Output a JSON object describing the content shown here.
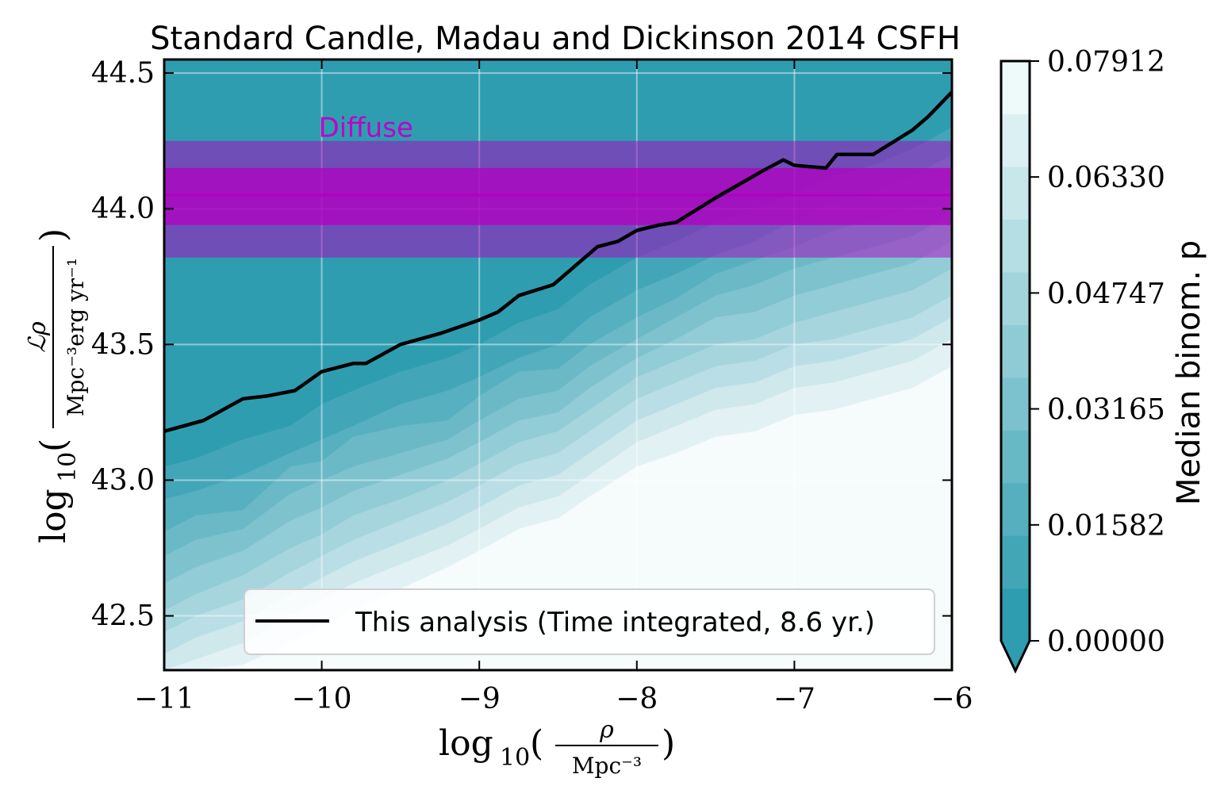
{
  "chart_data": {
    "type": "contour",
    "title": "Standard Candle, Madau and Dickinson 2014 CSFH",
    "xlabel": "log10 (ρ / Mpc⁻³)",
    "ylabel": "log10 (ℒρ / Mpc⁻³ erg yr⁻¹)",
    "xlim": [
      -11,
      -6
    ],
    "ylim": [
      42.3,
      44.55
    ],
    "xticks": [
      "−11",
      "−10",
      "−9",
      "−8",
      "−7",
      "−6"
    ],
    "xtick_values": [
      -11,
      -10,
      -9,
      -8,
      -7,
      -6
    ],
    "yticks": [
      "42.5",
      "43.0",
      "43.5",
      "44.0",
      "44.5"
    ],
    "ytick_values": [
      42.5,
      43.0,
      43.5,
      44.0,
      44.5
    ],
    "grid": true,
    "colorbar": {
      "label": "Median binom. p",
      "ticks": [
        "0.00000",
        "0.01582",
        "0.03165",
        "0.04747",
        "0.06330",
        "0.07912"
      ],
      "tick_values": [
        0.0,
        0.01582,
        0.03165,
        0.04747,
        0.0633,
        0.07912
      ],
      "min": 0.0,
      "max": 0.07912,
      "levels": 11,
      "color_low": "#2f9db0",
      "color_high": "#eef9fa",
      "extend": "min"
    },
    "contour_boundaries": [
      {
        "level": 0.0072,
        "x": [
          -11,
          -10.8,
          -10.5,
          -10.2,
          -10,
          -9.8,
          -9.5,
          -9.2,
          -9,
          -8.75,
          -8.5,
          -8.3,
          -8,
          -7.75,
          -7.5,
          -7.25,
          -7,
          -6.75,
          -6.5,
          -6.25,
          -6
        ],
        "y": [
          43.05,
          43.08,
          43.15,
          43.2,
          43.28,
          43.33,
          43.4,
          43.45,
          43.5,
          43.58,
          43.63,
          43.72,
          43.82,
          43.88,
          43.95,
          44.0,
          44.06,
          44.12,
          44.16,
          44.22,
          44.3
        ]
      },
      {
        "level": 0.0144,
        "x": [
          -11,
          -10.8,
          -10.5,
          -10.2,
          -10,
          -9.8,
          -9.5,
          -9.2,
          -9,
          -8.75,
          -8.5,
          -8.3,
          -8,
          -7.75,
          -7.5,
          -7.25,
          -7,
          -6.75,
          -6.5,
          -6.25,
          -6
        ],
        "y": [
          42.93,
          42.96,
          43.02,
          43.1,
          43.15,
          43.2,
          43.28,
          43.33,
          43.38,
          43.45,
          43.5,
          43.6,
          43.7,
          43.76,
          43.83,
          43.88,
          43.96,
          44.02,
          44.06,
          44.12,
          44.2
        ]
      },
      {
        "level": 0.0216,
        "x": [
          -11,
          -10.8,
          -10.5,
          -10.2,
          -10,
          -9.8,
          -9.5,
          -9.2,
          -9,
          -8.75,
          -8.5,
          -8.3,
          -8,
          -7.75,
          -7.5,
          -7.25,
          -7,
          -6.75,
          -6.5,
          -6.25,
          -6
        ],
        "y": [
          42.81,
          42.87,
          42.89,
          43.05,
          43.07,
          43.16,
          43.2,
          43.22,
          43.31,
          43.4,
          43.41,
          43.5,
          43.6,
          43.67,
          43.76,
          43.81,
          43.86,
          43.92,
          43.96,
          44.0,
          44.08
        ]
      },
      {
        "level": 0.0288,
        "x": [
          -11,
          -10.8,
          -10.5,
          -10.2,
          -10,
          -9.8,
          -9.5,
          -9.2,
          -9,
          -8.75,
          -8.5,
          -8.3,
          -8,
          -7.75,
          -7.5,
          -7.25,
          -7,
          -6.75,
          -6.5,
          -6.25,
          -6
        ],
        "y": [
          42.72,
          42.78,
          42.82,
          42.95,
          43.0,
          43.05,
          43.1,
          43.15,
          43.22,
          43.3,
          43.33,
          43.42,
          43.52,
          43.6,
          43.68,
          43.72,
          43.78,
          43.82,
          43.86,
          43.9,
          43.98
        ]
      },
      {
        "level": 0.036,
        "x": [
          -11,
          -10.8,
          -10.5,
          -10.2,
          -10,
          -9.8,
          -9.5,
          -9.2,
          -9,
          -8.75,
          -8.5,
          -8.3,
          -8,
          -7.75,
          -7.5,
          -7.25,
          -7,
          -6.75,
          -6.5,
          -6.25,
          -6
        ],
        "y": [
          42.62,
          42.68,
          42.74,
          42.85,
          42.9,
          42.96,
          43.02,
          43.08,
          43.14,
          43.22,
          43.25,
          43.34,
          43.45,
          43.52,
          43.6,
          43.62,
          43.68,
          43.72,
          43.76,
          43.8,
          43.88
        ]
      },
      {
        "level": 0.0432,
        "x": [
          -11,
          -10.8,
          -10.5,
          -10.2,
          -10,
          -9.8,
          -9.5,
          -9.2,
          -9,
          -8.75,
          -8.5,
          -8.3,
          -8,
          -7.75,
          -7.5,
          -7.25,
          -7,
          -6.75,
          -6.5,
          -6.25,
          -6
        ],
        "y": [
          42.52,
          42.58,
          42.65,
          42.75,
          42.8,
          42.87,
          42.93,
          43.0,
          43.06,
          43.14,
          43.18,
          43.26,
          43.38,
          43.44,
          43.5,
          43.52,
          43.58,
          43.62,
          43.66,
          43.7,
          43.78
        ]
      },
      {
        "level": 0.0504,
        "x": [
          -11,
          -10.8,
          -10.5,
          -10.2,
          -10,
          -9.8,
          -9.5,
          -9.2,
          -9,
          -8.75,
          -8.5,
          -8.3,
          -8,
          -7.75,
          -7.5,
          -7.25,
          -7,
          -6.75,
          -6.5,
          -6.25,
          -6
        ],
        "y": [
          42.44,
          42.5,
          42.56,
          42.66,
          42.72,
          42.78,
          42.85,
          42.92,
          42.98,
          43.06,
          43.1,
          43.18,
          43.3,
          43.36,
          43.42,
          43.44,
          43.5,
          43.52,
          43.56,
          43.6,
          43.68
        ]
      },
      {
        "level": 0.0576,
        "x": [
          -11,
          -10.8,
          -10.5,
          -10.2,
          -10,
          -9.8,
          -9.5,
          -9.2,
          -9,
          -8.75,
          -8.5,
          -8.3,
          -8,
          -7.75,
          -7.5,
          -7.25,
          -7,
          -6.75,
          -6.5,
          -6.25,
          -6
        ],
        "y": [
          42.36,
          42.42,
          42.48,
          42.58,
          42.64,
          42.7,
          42.77,
          42.84,
          42.9,
          42.98,
          43.02,
          43.1,
          43.22,
          43.28,
          43.34,
          43.36,
          43.42,
          43.44,
          43.48,
          43.52,
          43.6
        ]
      },
      {
        "level": 0.0648,
        "x": [
          -11,
          -10.8,
          -10.5,
          -10.2,
          -10,
          -9.8,
          -9.5,
          -9.2,
          -9,
          -8.75,
          -8.5,
          -8.3,
          -8,
          -7.75,
          -7.5,
          -7.25,
          -7,
          -6.75,
          -6.5,
          -6.25,
          -6
        ],
        "y": [
          42.3,
          42.34,
          42.4,
          42.5,
          42.56,
          42.62,
          42.69,
          42.76,
          42.82,
          42.9,
          42.94,
          43.02,
          43.14,
          43.2,
          43.26,
          43.28,
          43.34,
          43.36,
          43.4,
          43.44,
          43.52
        ]
      },
      {
        "level": 0.072,
        "x": [
          -11,
          -10.8,
          -10.5,
          -10.2,
          -10,
          -9.8,
          -9.5,
          -9.2,
          -9,
          -8.75,
          -8.5,
          -8.3,
          -8,
          -7.75,
          -7.5,
          -7.25,
          -7,
          -6.75,
          -6.5,
          -6.25,
          -6
        ],
        "y": [
          42.3,
          42.3,
          42.32,
          42.4,
          42.46,
          42.52,
          42.6,
          42.68,
          42.74,
          42.82,
          42.86,
          42.94,
          43.05,
          43.1,
          43.16,
          43.18,
          43.24,
          43.26,
          43.3,
          43.34,
          43.42
        ]
      }
    ],
    "series": [
      {
        "name": "This analysis (Time integrated, 8.6 yr.)",
        "color": "#000000",
        "x": [
          -11,
          -10.75,
          -10.5,
          -10.35,
          -10.17,
          -10.0,
          -9.8,
          -9.72,
          -9.5,
          -9.25,
          -9.0,
          -8.88,
          -8.75,
          -8.53,
          -8.25,
          -8.12,
          -8.0,
          -7.86,
          -7.75,
          -7.5,
          -7.2,
          -7.07,
          -7.0,
          -6.8,
          -6.73,
          -6.5,
          -6.25,
          -6.15,
          -6.0
        ],
        "y": [
          43.18,
          43.22,
          43.3,
          43.31,
          43.33,
          43.4,
          43.43,
          43.43,
          43.5,
          43.54,
          43.59,
          43.62,
          43.68,
          43.72,
          43.86,
          43.88,
          43.92,
          43.94,
          43.95,
          44.04,
          44.14,
          44.18,
          44.16,
          44.15,
          44.2,
          44.2,
          44.29,
          44.34,
          44.43
        ]
      }
    ],
    "bands": [
      {
        "name": "Diffuse",
        "color": "#b000c0",
        "center": 44.05,
        "inner": [
          43.94,
          44.15
        ],
        "outer": [
          43.82,
          44.25
        ]
      }
    ],
    "annotations": [
      {
        "text": "Diffuse",
        "x": -10.02,
        "y": 44.3,
        "color": "#c000c8"
      }
    ],
    "legend": {
      "placement": "lower-right",
      "entries": [
        "This analysis (Time integrated, 8.6 yr.)"
      ]
    }
  }
}
